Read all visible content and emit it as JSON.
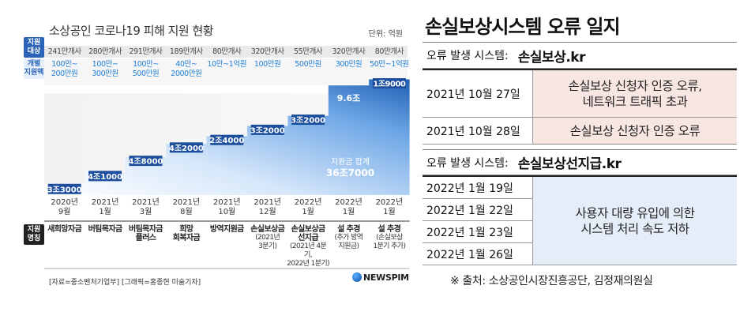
{
  "infographic": {
    "title": "소상공인 코로나19 피해 지원 현황",
    "unit": "단위: 억원",
    "row_labels": {
      "target": [
        "지원",
        "대상"
      ],
      "amount": [
        "개별",
        "지원액"
      ],
      "program": [
        "지원",
        "명칭"
      ]
    },
    "targets": [
      "241만개사",
      "280만개사",
      "291만개사",
      "189만개사",
      "80만개사",
      "320만개사",
      "55만개사",
      "320만개사",
      "80만개사"
    ],
    "amounts": [
      [
        "100만~",
        "200만원"
      ],
      [
        "100만~",
        "300만원"
      ],
      [
        "100만~",
        "500만원"
      ],
      [
        "40만~",
        "2000만원"
      ],
      [
        "10만~1억원",
        ""
      ],
      [
        "100만원",
        ""
      ],
      [
        "500만원",
        ""
      ],
      [
        "300만원",
        ""
      ],
      [
        "50만~1억원",
        ""
      ]
    ],
    "programs": [
      {
        "name": [
          "새희망자금"
        ],
        "note": []
      },
      {
        "name": [
          "버팀목자금"
        ],
        "note": []
      },
      {
        "name": [
          "버팀목자금",
          "플러스"
        ],
        "note": []
      },
      {
        "name": [
          "희망",
          "회복자금"
        ],
        "note": []
      },
      {
        "name": [
          "방역지원금"
        ],
        "note": []
      },
      {
        "name": [
          "손실보상금"
        ],
        "note": [
          "(2021년",
          "3분기)"
        ]
      },
      {
        "name": [
          "손실보상금",
          "선지급"
        ],
        "note": [
          "(2021년 4분기,",
          "2022년 1분기)"
        ]
      },
      {
        "name": [
          "설 추경"
        ],
        "note": [
          "(추가 방역",
          "지원금)"
        ]
      },
      {
        "name": [
          "설 추경"
        ],
        "note": [
          "(손실보상",
          "1분기 추가)"
        ]
      }
    ],
    "total_label": "지원금 합계",
    "total_value": "36조7000",
    "source": "[자료=중소벤처기업부] [그래픽=홍종현 미술기자]",
    "brand": "NEWSPIM"
  },
  "chart_data": {
    "type": "area",
    "title": "소상공인 코로나19 피해 지원 현황",
    "xlabel": "",
    "ylabel": "단위: 억원",
    "categories": [
      [
        "2020년",
        "9월"
      ],
      [
        "2021년",
        "1월"
      ],
      [
        "2021년",
        "3월"
      ],
      [
        "2021년",
        "8월"
      ],
      [
        "2021년",
        "10월"
      ],
      [
        "2021년",
        "12월"
      ],
      [
        "2022년",
        "1월"
      ],
      [
        "2022년",
        "1월"
      ],
      [
        "2022년",
        "1월"
      ]
    ],
    "series": [
      {
        "name": "지원금",
        "values": [
          33000,
          41000,
          48000,
          42000,
          24000,
          32000,
          32000,
          96000,
          19000
        ],
        "labels": [
          "3조3000",
          "4조1000",
          "4조8000",
          "4조2000",
          "2조4000",
          "3조2000",
          "3조2000",
          "9.6조",
          "1조9000"
        ]
      }
    ],
    "cumulative": [
      33000,
      74000,
      122000,
      164000,
      188000,
      220000,
      252000,
      348000,
      367000
    ],
    "total": 367000,
    "ylim": [
      0,
      367000
    ],
    "grid": false,
    "legend": "none"
  },
  "error_log": {
    "title": "손실보상시스템 오류 일지",
    "sections": [
      {
        "header_label": "오류 발생 시스템:",
        "header_value": "손실보상.kr",
        "rows": [
          {
            "dates": [
              "2021년 10월 27일"
            ],
            "desc": [
              "손실보상 신청자 인증 오류,",
              "네트워크 트래픽 초과"
            ]
          },
          {
            "dates": [
              "2021년 10월 28일"
            ],
            "desc": [
              "손실보상 신청자 인증 오류"
            ]
          }
        ]
      },
      {
        "header_label": "오류 발생 시스템:",
        "header_value": "손실보상선지급.kr",
        "rows": [
          {
            "dates": [
              "2022년 1월 19일",
              "2022년 1월 22일",
              "2022년 1월 23일",
              "2022년 1월 26일"
            ],
            "desc": [
              "사용자 대량 유입에 의한",
              "시스템 처리 속도 저하"
            ]
          }
        ]
      }
    ],
    "footnote": "※ 출처: 소상공인시장진흥공단, 김정재의원실",
    "colors": {
      "section1_desc_bg": "#f7e6e1",
      "section2_desc_bg": "#e5edf8"
    }
  },
  "colors": {
    "bar_light": "#9ec6f0",
    "bar_dark": "#1e5fb4",
    "label_bg": "#1d4f9e",
    "accent_blue": "#1f7fd6"
  }
}
